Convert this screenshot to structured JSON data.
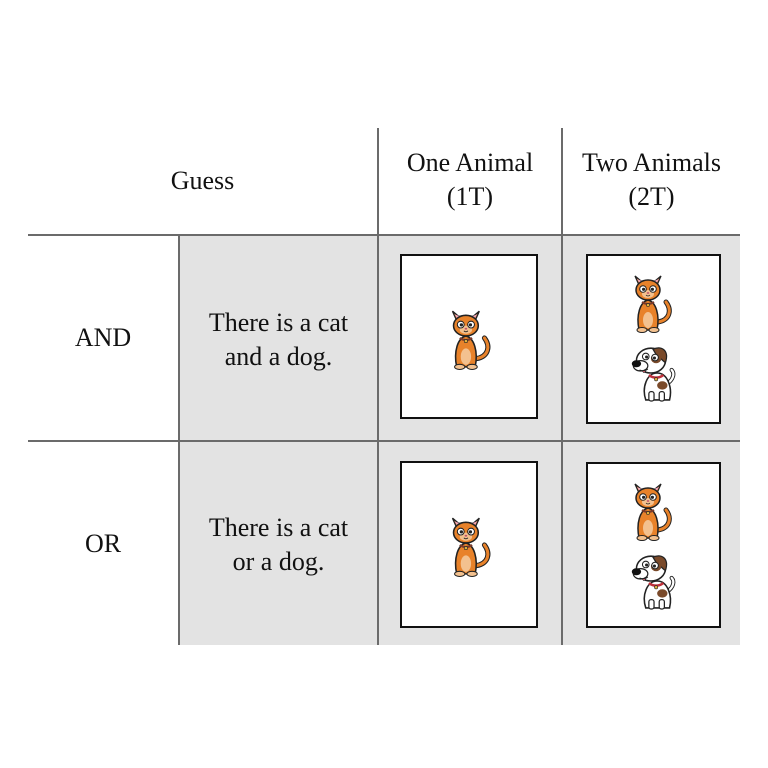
{
  "header": {
    "guess_label": "Guess",
    "col1_line1": "One Animal",
    "col1_line2": "(1T)",
    "col2_line1": "Two Animals",
    "col2_line2": "(2T)"
  },
  "rows": [
    {
      "label": "AND",
      "sentence_line1": "There is a cat",
      "sentence_line2": "and a dog."
    },
    {
      "label": "OR",
      "sentence_line1": "There is a cat",
      "sentence_line2": "or a dog."
    }
  ],
  "icons": {
    "cat": "cat-icon",
    "dog": "dog-icon"
  },
  "colors": {
    "gray_fill": "#e3e3e3",
    "cat_orange": "#e8822a",
    "dog_brown": "#7a4a2a"
  }
}
